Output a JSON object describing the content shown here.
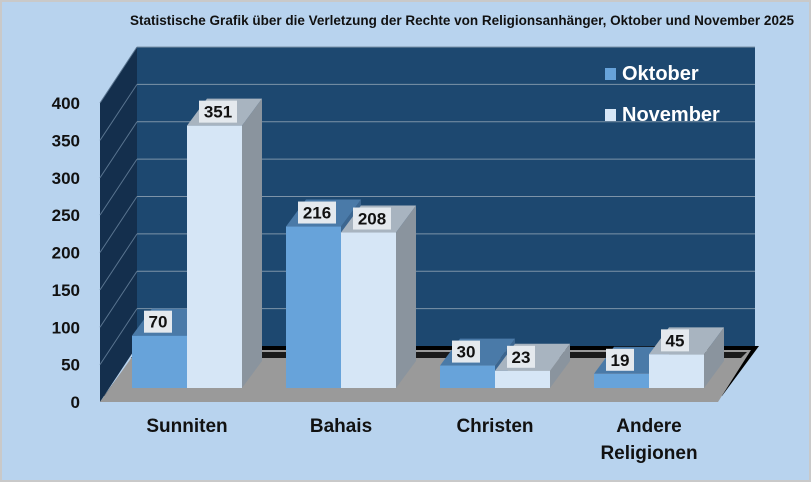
{
  "chart_data": {
    "type": "bar",
    "title": "Statistische Grafik über die Verletzung der Rechte von Religionsanhänger, Oktober und November 2025",
    "categories": [
      "Sunniten",
      "Bahais",
      "Christen",
      "Andere Religionen"
    ],
    "series": [
      {
        "name": "Oktober",
        "values": [
          70,
          216,
          30,
          19
        ],
        "color": "#67a3da"
      },
      {
        "name": "November",
        "values": [
          351,
          208,
          23,
          45
        ],
        "color": "#d6e6f6"
      }
    ],
    "yticks": [
      "0",
      "50",
      "100",
      "150",
      "200",
      "250",
      "300",
      "350",
      "400"
    ],
    "ylim": [
      0,
      400
    ],
    "xlabel": "",
    "ylabel": "",
    "grid": true,
    "legend": "top-right",
    "wall_color": "#1d4870",
    "background": "#b8d3ee"
  }
}
